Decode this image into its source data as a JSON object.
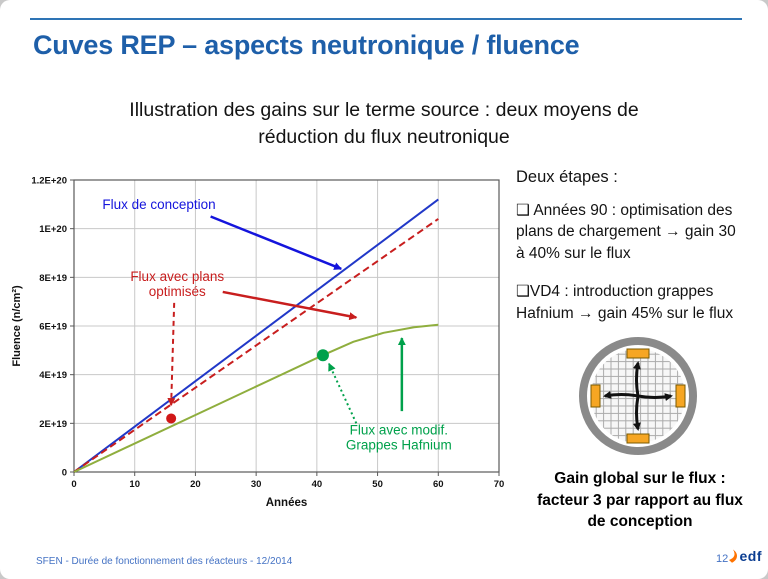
{
  "slide": {
    "title": "Cuves REP – aspects neutronique / fluence",
    "subtitle": "Illustration des gains sur le terme source : deux moyens de\nréduction du flux neutronique",
    "footer_left": "SFEN - Durée de fonctionnement des réacteurs - 12/2014",
    "page_number": "12",
    "logo_text": "edf"
  },
  "right_panel": {
    "heading": "Deux étapes :",
    "bullets": [
      "❑ Années 90 : optimisation des\nplans de chargement → gain 30\nà 40% sur le flux",
      "❑VD4 : introduction grappes\nHafnium → gain 45% sur le flux"
    ],
    "caption": "Gain global sur le flux :\nfacteur 3 par rapport au flux\nde conception"
  },
  "chart_data": {
    "type": "line",
    "title": "",
    "xlabel": "Années",
    "ylabel": "Fluence (n/cm²)",
    "xlim": [
      0,
      70
    ],
    "ylim": [
      0,
      1.2e+20
    ],
    "grid": true,
    "x_ticks": [
      0,
      10,
      20,
      30,
      40,
      50,
      60,
      70
    ],
    "y_ticks": [
      {
        "v": 0,
        "label": "0"
      },
      {
        "v": 2e+19,
        "label": "2E+19"
      },
      {
        "v": 4e+19,
        "label": "4E+19"
      },
      {
        "v": 6e+19,
        "label": "6E+19"
      },
      {
        "v": 8e+19,
        "label": "8E+19"
      },
      {
        "v": 1e+20,
        "label": "1E+20"
      },
      {
        "v": 1.2e+20,
        "label": "1.2E+20"
      }
    ],
    "series": [
      {
        "id": "flux-conception",
        "name": "Flux de conception",
        "color": "#2138C8",
        "dash": "none",
        "width": 2,
        "points": [
          [
            0,
            0
          ],
          [
            60,
            1.12e+20
          ]
        ]
      },
      {
        "id": "flux-plans-optimises",
        "name": "Flux avec plans optimisés",
        "color": "#C81E1E",
        "dash": "7,4",
        "width": 2,
        "points": [
          [
            0,
            0
          ],
          [
            60,
            1.04e+20
          ]
        ]
      },
      {
        "id": "flux-grappes-hafnium",
        "name": "Flux avec modif. Grappes Hafnium",
        "color": "#8FAE3E",
        "dash": "none",
        "width": 2,
        "points": [
          [
            0,
            0
          ],
          [
            41,
            4.8e+19
          ],
          [
            46,
            5.35e+19
          ],
          [
            51,
            5.72e+19
          ],
          [
            56,
            5.95e+19
          ],
          [
            60,
            6.05e+19
          ]
        ]
      }
    ],
    "markers": [
      {
        "id": "start-plans-optimises",
        "x": 16,
        "y": 2.2e+19,
        "color": "#D01818",
        "r": 5
      },
      {
        "id": "start-grappes-hafnium",
        "x": 41,
        "y": 4.8e+19,
        "color": "#00A14B",
        "r": 6
      }
    ],
    "annotations": [
      {
        "id": "label-flux-conception",
        "lines": [
          "Flux de conception"
        ],
        "x": 14,
        "y": 1.08e+20,
        "color": "#1414DC"
      },
      {
        "id": "label-flux-plans-optimises",
        "lines": [
          "Flux avec plans",
          "optimisés"
        ],
        "x": 17,
        "y": 7.85e+19,
        "color": "#C81E1E"
      },
      {
        "id": "label-flux-grappes-hafnium",
        "lines": [
          "Flux avec modif.",
          "Grappes Hafnium"
        ],
        "x": 53.5,
        "y": 1.55e+19,
        "color": "#00A14B"
      }
    ],
    "arrows": [
      {
        "from": [
          22.5,
          1.05e+20
        ],
        "to": [
          44,
          8.35e+19
        ],
        "color": "#1414DC",
        "dash": "none",
        "width": 2.5
      },
      {
        "from": [
          16.5,
          6.95e+19
        ],
        "to": [
          16,
          2.75e+19
        ],
        "color": "#C81E1E",
        "dash": "5,4",
        "width": 2
      },
      {
        "from": [
          24.5,
          7.4e+19
        ],
        "to": [
          46.5,
          6.35e+19
        ],
        "color": "#C81E1E",
        "dash": "none",
        "width": 2.5
      },
      {
        "from": [
          54,
          2.5e+19
        ],
        "to": [
          54,
          5.5e+19
        ],
        "color": "#00A14B",
        "dash": "none",
        "width": 2.5
      },
      {
        "from": [
          46.5,
          2e+19
        ],
        "to": [
          42,
          4.45e+19
        ],
        "color": "#00A14B",
        "dash": "2,3",
        "width": 2
      }
    ]
  }
}
